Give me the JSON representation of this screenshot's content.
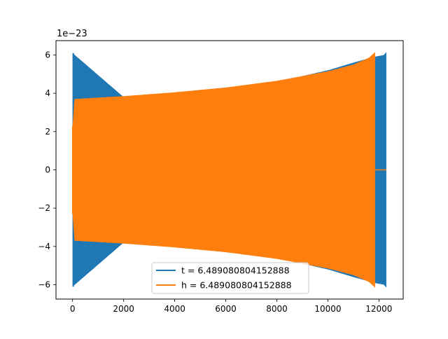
{
  "chart_data": {
    "type": "line",
    "title": "",
    "xlabel": "",
    "ylabel": "",
    "y_offset_label": "1e−23",
    "xlim": [
      -650,
      12950
    ],
    "ylim": [
      -6.75,
      6.75
    ],
    "x_ticks": [
      0,
      2000,
      4000,
      6000,
      8000,
      10000,
      12000
    ],
    "x_tick_labels": [
      "0",
      "2000",
      "4000",
      "6000",
      "8000",
      "10000",
      "12000"
    ],
    "y_ticks": [
      -6,
      -4,
      -2,
      0,
      2,
      4,
      6
    ],
    "y_tick_labels": [
      "−6",
      "−4",
      "−2",
      "0",
      "2",
      "4",
      "6"
    ],
    "grid": false,
    "legend_position": "lower-center",
    "series": [
      {
        "name": "t = 6.489080804152888",
        "color": "#1f77b4",
        "envelope": {
          "x": [
            0,
            2000,
            4000,
            6000,
            8000,
            10000,
            11000,
            11800,
            12200,
            12290
          ],
          "amplitude": [
            6.1,
            3.8,
            4.0,
            4.3,
            4.6,
            5.2,
            5.6,
            5.9,
            6.0,
            6.15
          ]
        },
        "segments": [
          {
            "x_start": 0,
            "x_end": 40,
            "amplitude": 6.1
          },
          {
            "x_start": 40,
            "x_end": 12290,
            "amplitude": "matches orange envelope; visible beyond 11850"
          }
        ]
      },
      {
        "name": "h = 6.489080804152888",
        "color": "#ff7f0e",
        "envelope": {
          "x": [
            0,
            60,
            2000,
            4000,
            6000,
            8000,
            10000,
            11000,
            11600,
            11850
          ],
          "amplitude": [
            2.3,
            3.7,
            3.85,
            4.05,
            4.3,
            4.65,
            5.15,
            5.5,
            5.85,
            6.15
          ]
        },
        "tail": {
          "x_start": 11850,
          "x_end": 12290,
          "value": 0
        }
      }
    ]
  }
}
